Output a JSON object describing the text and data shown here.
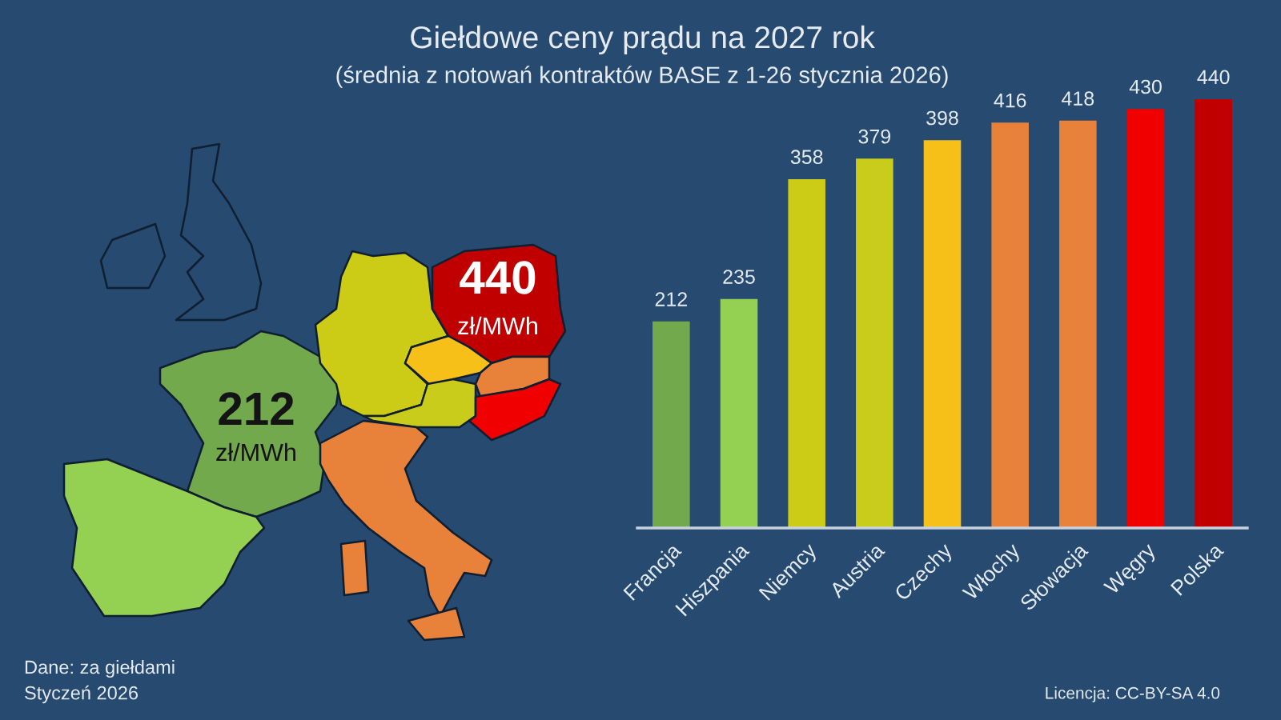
{
  "chart_data": {
    "type": "bar",
    "title": "Giełdowe ceny prądu na 2027 rok",
    "subtitle": "(średnia z notowań kontraktów BASE z 1-26 stycznia 2026)",
    "categories": [
      "Francja",
      "Hiszpania",
      "Niemcy",
      "Austria",
      "Czechy",
      "Włochy",
      "Słowacja",
      "Węgry",
      "Polska"
    ],
    "values": [
      212,
      235,
      358,
      379,
      398,
      416,
      418,
      430,
      440
    ],
    "colors": [
      "#72a94c",
      "#94d052",
      "#cccc16",
      "#c9cc1a",
      "#f7c018",
      "#e8823a",
      "#e8823a",
      "#f00000",
      "#c00000"
    ],
    "data_labels": true,
    "annotations": [
      "212",
      "zł/MWh",
      "440",
      "zł/MWh",
      "Dane: za giełdami",
      "Styczeń 2026",
      "Licencja: CC-BY-SA 4.0"
    ]
  }
}
